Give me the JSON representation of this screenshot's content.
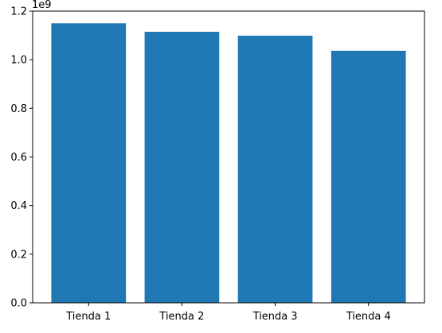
{
  "chart_data": {
    "type": "bar",
    "categories": [
      "Tienda 1",
      "Tienda 2",
      "Tienda 3",
      "Tienda 4"
    ],
    "values": [
      1150000000,
      1115000000,
      1099000000,
      1037000000
    ],
    "ylim": [
      0,
      1200000000
    ],
    "yticks": [
      0,
      200000000,
      400000000,
      600000000,
      800000000,
      1000000000,
      1200000000
    ],
    "ytick_labels": [
      "0.0",
      "0.2",
      "0.4",
      "0.6",
      "0.8",
      "1.0",
      "1.2"
    ],
    "y_offset_label": "1e9",
    "bar_color": "#1f77b4",
    "grid": false
  }
}
